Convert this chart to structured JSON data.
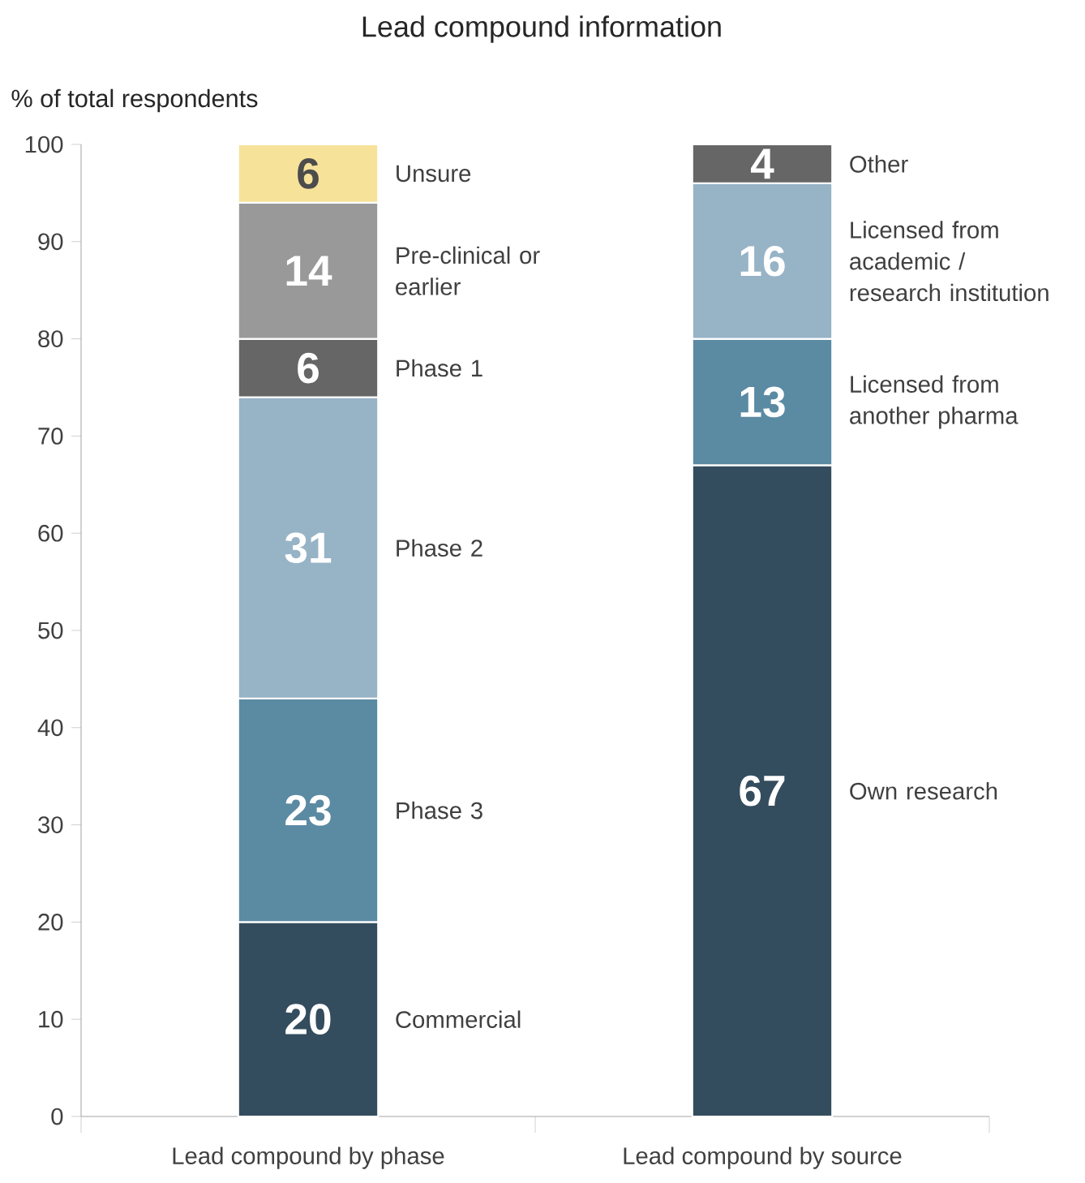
{
  "chart_data": {
    "type": "bar",
    "title": "Lead compound information",
    "ylabel": "% of total respondents",
    "categories": [
      "Lead compound by phase",
      "Lead compound by source"
    ],
    "stacked": true,
    "data_labels": true,
    "grid": false,
    "ylim": [
      0,
      100
    ],
    "yticks": [
      0,
      10,
      20,
      30,
      40,
      50,
      60,
      70,
      80,
      90,
      100
    ],
    "series": [
      {
        "name": "Commercial",
        "color": "#344d5e",
        "values": [
          20,
          null
        ]
      },
      {
        "name": "Phase 3",
        "color": "#5b8aa3",
        "values": [
          23,
          null
        ]
      },
      {
        "name": "Phase 2",
        "color": "#97b3c6",
        "values": [
          31,
          null
        ]
      },
      {
        "name": "Phase 1",
        "color": "#666666",
        "values": [
          6,
          null
        ]
      },
      {
        "name": "Pre-clinical or earlier",
        "color": "#999999",
        "values": [
          14,
          null
        ]
      },
      {
        "name": "Unsure",
        "color": "#f7e29a",
        "values": [
          6,
          null
        ]
      },
      {
        "name": "Own research",
        "color": "#344d5e",
        "values": [
          null,
          67
        ]
      },
      {
        "name": "Licensed from another pharma",
        "color": "#5b8aa3",
        "values": [
          null,
          13
        ]
      },
      {
        "name": "Licensed from academic / research institution",
        "color": "#97b3c6",
        "values": [
          null,
          16
        ]
      },
      {
        "name": "Other",
        "color": "#666666",
        "values": [
          null,
          4
        ]
      }
    ]
  }
}
